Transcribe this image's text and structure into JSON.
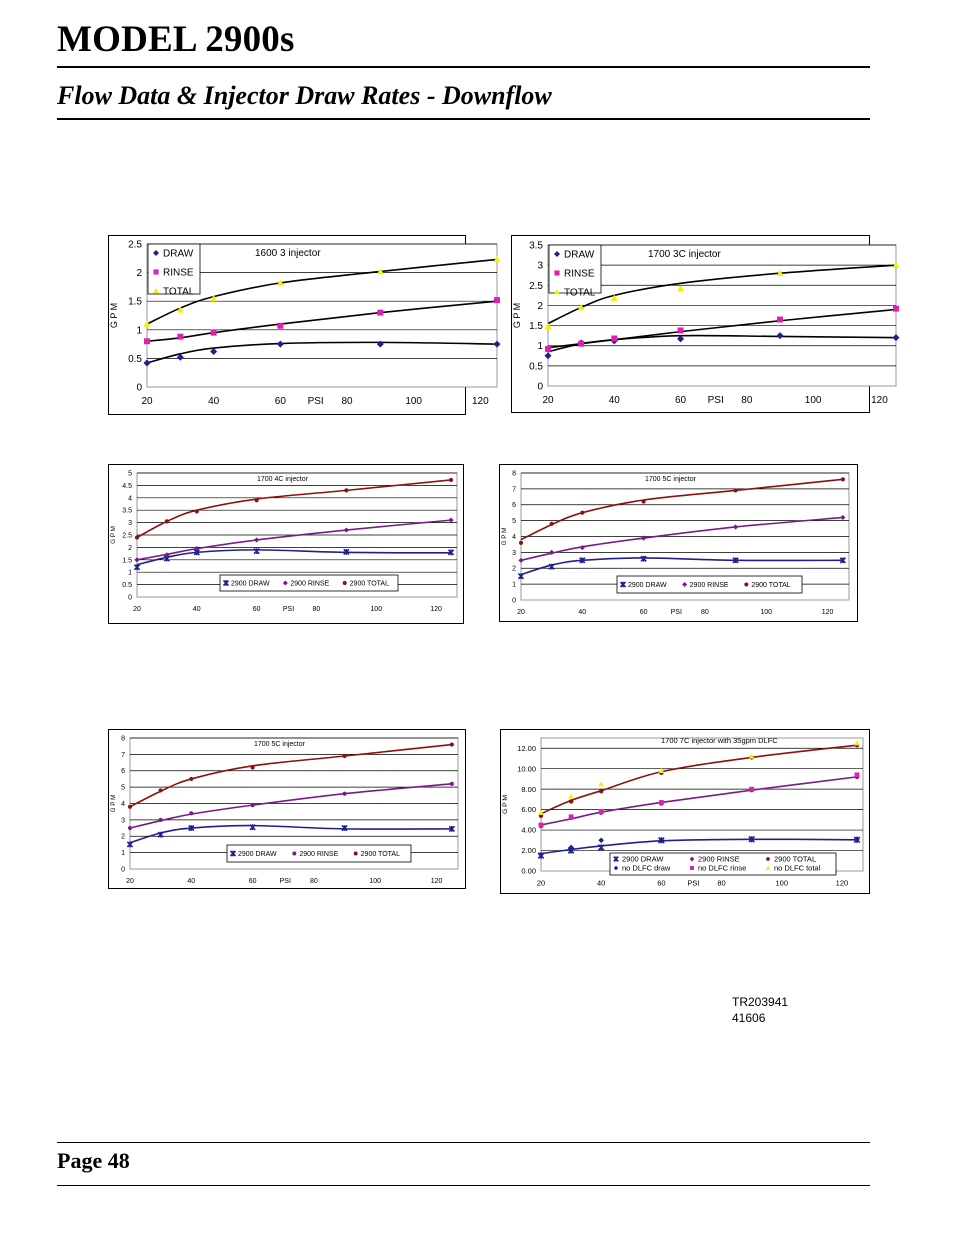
{
  "header": {
    "model_title": "MODEL 2900s",
    "subtitle": "Flow Data & Injector Draw Rates - Downflow"
  },
  "footer": {
    "page_number": "Page 48",
    "doc_ref_line1": "TR203941",
    "doc_ref_line2": "41606"
  },
  "colors": {
    "draw": "#1f1f8f",
    "rinse": "#7a1a8a",
    "total": "#8b1010",
    "rinse_magenta": "#e01eb0",
    "total_yellow": "#f2f200"
  },
  "chart_data": [
    {
      "type": "scatter",
      "title": "1600 3 injector",
      "xlabel": "PSI",
      "ylabel": "G P M",
      "xlim": [
        20,
        125
      ],
      "ylim": [
        0,
        2.5
      ],
      "yticks": [
        "0",
        "0.5",
        "1",
        "1.5",
        "2",
        "2.5"
      ],
      "xticks": [
        "20",
        "40",
        "60",
        "80",
        "100",
        "120"
      ],
      "legend": "top-left",
      "series": [
        {
          "name": "DRAW",
          "marker": "diamond",
          "color": "#1f1f8f",
          "x": [
            20,
            30,
            40,
            60,
            90,
            125
          ],
          "y": [
            0.42,
            0.52,
            0.62,
            0.75,
            0.75,
            0.75
          ],
          "trend": [
            0.42,
            0.58,
            0.68,
            0.76,
            0.78,
            0.75
          ]
        },
        {
          "name": "RINSE",
          "marker": "square",
          "color": "#e01eb0",
          "x": [
            20,
            30,
            40,
            60,
            90,
            125
          ],
          "y": [
            0.8,
            0.88,
            0.95,
            1.07,
            1.3,
            1.52
          ],
          "trend": [
            0.8,
            0.86,
            0.95,
            1.1,
            1.3,
            1.5
          ]
        },
        {
          "name": "TOTAL",
          "marker": "triangle",
          "color": "#f2f200",
          "x": [
            20,
            30,
            40,
            60,
            90,
            125
          ],
          "y": [
            1.1,
            1.35,
            1.55,
            1.82,
            2.02,
            2.23
          ],
          "trend": [
            1.1,
            1.38,
            1.58,
            1.82,
            2.02,
            2.23
          ]
        }
      ]
    },
    {
      "type": "scatter",
      "title": "1700 3C injector",
      "xlabel": "PSI",
      "ylabel": "G P M",
      "xlim": [
        20,
        125
      ],
      "ylim": [
        0,
        3.5
      ],
      "yticks": [
        "0",
        "0.5",
        "1",
        "1.5",
        "2",
        "2.5",
        "3",
        "3.5"
      ],
      "xticks": [
        "20",
        "40",
        "60",
        "80",
        "100",
        "120"
      ],
      "legend": "top-left",
      "series": [
        {
          "name": "DRAW",
          "marker": "diamond",
          "color": "#1f1f8f",
          "x": [
            20,
            30,
            40,
            60,
            90,
            125
          ],
          "y": [
            0.75,
            1.07,
            1.12,
            1.17,
            1.25,
            1.2
          ],
          "trend": [
            0.85,
            1.05,
            1.15,
            1.25,
            1.23,
            1.2
          ]
        },
        {
          "name": "RINSE",
          "marker": "square",
          "color": "#e01eb0",
          "x": [
            20,
            30,
            40,
            60,
            90,
            125
          ],
          "y": [
            0.92,
            1.05,
            1.18,
            1.38,
            1.65,
            1.92
          ],
          "trend": [
            0.95,
            1.05,
            1.15,
            1.35,
            1.62,
            1.9
          ]
        },
        {
          "name": "TOTAL",
          "marker": "triangle",
          "color": "#f2f200",
          "x": [
            20,
            30,
            40,
            60,
            90,
            125
          ],
          "y": [
            1.48,
            1.95,
            2.18,
            2.42,
            2.8,
            3.0
          ],
          "trend": [
            1.55,
            1.95,
            2.25,
            2.55,
            2.8,
            3.0
          ]
        }
      ]
    },
    {
      "type": "scatter",
      "title": "1700 4C injector",
      "xlabel": "PSI",
      "ylabel": "G P M",
      "xlim": [
        20,
        127
      ],
      "ylim": [
        0,
        5
      ],
      "yticks": [
        "0",
        "0.5",
        "1",
        "1.5",
        "2",
        "2.5",
        "3",
        "3.5",
        "4",
        "4.5",
        "5"
      ],
      "xticks": [
        "20",
        "40",
        "60",
        "80",
        "100",
        "120"
      ],
      "legend": "bottom-inline",
      "series": [
        {
          "name": "2900 DRAW",
          "marker": "asterisk",
          "color": "#1f1f8f",
          "x": [
            20,
            30,
            40,
            60,
            90,
            125
          ],
          "y": [
            1.2,
            1.55,
            1.8,
            1.85,
            1.82,
            1.8
          ],
          "trend": [
            1.3,
            1.6,
            1.8,
            1.9,
            1.8,
            1.78
          ]
        },
        {
          "name": "2900 RINSE",
          "marker": "diamond",
          "color": "#7a1a8a",
          "x": [
            20,
            30,
            40,
            60,
            90,
            125
          ],
          "y": [
            1.5,
            1.7,
            1.95,
            2.3,
            2.7,
            3.1
          ],
          "trend": [
            1.5,
            1.72,
            1.95,
            2.3,
            2.7,
            3.1
          ]
        },
        {
          "name": "2900 TOTAL",
          "marker": "dot",
          "color": "#8b1010",
          "x": [
            20,
            30,
            40,
            60,
            90,
            125
          ],
          "y": [
            2.4,
            3.05,
            3.45,
            3.9,
            4.3,
            4.72
          ],
          "trend": [
            2.4,
            3.05,
            3.5,
            3.95,
            4.3,
            4.72
          ]
        }
      ]
    },
    {
      "type": "scatter",
      "title": "1700 5C injector",
      "xlabel": "PSI",
      "ylabel": "G P M",
      "xlim": [
        20,
        127
      ],
      "ylim": [
        0,
        8
      ],
      "yticks": [
        "0",
        "1",
        "2",
        "3",
        "4",
        "5",
        "6",
        "7",
        "8"
      ],
      "xticks": [
        "20",
        "40",
        "60",
        "80",
        "100",
        "120"
      ],
      "legend": "bottom-inline",
      "series": [
        {
          "name": "2900 DRAW",
          "marker": "asterisk",
          "color": "#1f1f8f",
          "x": [
            20,
            30,
            40,
            60,
            90,
            125
          ],
          "y": [
            1.5,
            2.1,
            2.5,
            2.6,
            2.5,
            2.5
          ],
          "trend": [
            1.6,
            2.2,
            2.5,
            2.65,
            2.5,
            2.5
          ]
        },
        {
          "name": "2900 RINSE",
          "marker": "diamond",
          "color": "#7a1a8a",
          "x": [
            20,
            30,
            40,
            60,
            90,
            125
          ],
          "y": [
            2.5,
            3.0,
            3.3,
            3.9,
            4.6,
            5.2
          ],
          "trend": [
            2.5,
            2.95,
            3.35,
            3.9,
            4.6,
            5.2
          ]
        },
        {
          "name": "2900 TOTAL",
          "marker": "dot",
          "color": "#8b1010",
          "x": [
            20,
            30,
            40,
            60,
            90,
            125
          ],
          "y": [
            3.6,
            4.8,
            5.5,
            6.2,
            6.9,
            7.6
          ],
          "trend": [
            3.8,
            4.75,
            5.5,
            6.3,
            6.9,
            7.6
          ]
        }
      ]
    },
    {
      "type": "scatter",
      "title": "1700 5C injector",
      "xlabel": "PSI",
      "ylabel": "G P M",
      "xlim": [
        20,
        127
      ],
      "ylim": [
        0,
        8
      ],
      "yticks": [
        "0",
        "1",
        "2",
        "3",
        "4",
        "5",
        "6",
        "7",
        "8"
      ],
      "xticks": [
        "20",
        "40",
        "60",
        "80",
        "100",
        "120"
      ],
      "legend": "bottom-inline",
      "series": [
        {
          "name": "2900 DRAW",
          "marker": "asterisk",
          "color": "#1f1f8f",
          "x": [
            20,
            30,
            40,
            60,
            90,
            125
          ],
          "y": [
            1.5,
            2.1,
            2.5,
            2.55,
            2.5,
            2.45
          ],
          "trend": [
            1.6,
            2.2,
            2.5,
            2.65,
            2.45,
            2.45
          ]
        },
        {
          "name": "2900 RINSE",
          "marker": "dot",
          "color": "#7a1a8a",
          "x": [
            20,
            30,
            40,
            60,
            90,
            125
          ],
          "y": [
            2.5,
            3.0,
            3.4,
            3.9,
            4.6,
            5.2
          ],
          "trend": [
            2.5,
            2.95,
            3.35,
            3.9,
            4.6,
            5.2
          ]
        },
        {
          "name": "2900 TOTAL",
          "marker": "dot",
          "color": "#8b1010",
          "x": [
            20,
            30,
            40,
            60,
            90,
            125
          ],
          "y": [
            3.8,
            4.8,
            5.5,
            6.2,
            6.9,
            7.6
          ],
          "trend": [
            3.8,
            4.75,
            5.5,
            6.3,
            6.9,
            7.6
          ]
        }
      ]
    },
    {
      "type": "scatter",
      "title": "1700 7C injector with 35gpm DLFC",
      "xlabel": "PSI",
      "ylabel": "G P M",
      "xlim": [
        20,
        127
      ],
      "ylim": [
        0,
        13
      ],
      "yticks": [
        "0.00",
        "2.00",
        "4.00",
        "6.00",
        "8.00",
        "10.00",
        "12.00"
      ],
      "xticks": [
        "20",
        "40",
        "60",
        "80",
        "100",
        "120"
      ],
      "legend": "bottom-inline-2rows",
      "series": [
        {
          "name": "2900 DRAW",
          "marker": "asterisk",
          "color": "#1f1f8f",
          "x": [
            20,
            30,
            40,
            60,
            90,
            125
          ],
          "y": [
            1.5,
            2.0,
            2.3,
            3.0,
            3.1,
            3.05
          ],
          "trend": [
            1.7,
            2.1,
            2.45,
            2.95,
            3.1,
            3.05
          ]
        },
        {
          "name": "no DLFC draw",
          "marker": "diamond",
          "color": "#1f1f8f",
          "x": [
            20,
            30,
            40,
            60,
            90,
            125
          ],
          "y": [
            1.6,
            2.3,
            3.0,
            3.0,
            3.1,
            3.1
          ]
        },
        {
          "name": "2900 RINSE",
          "marker": "dot",
          "color": "#7a1a8a",
          "x": [
            20,
            30,
            40,
            60,
            90,
            125
          ],
          "y": [
            4.4,
            5.2,
            5.7,
            6.6,
            7.9,
            9.2
          ],
          "trend": [
            4.5,
            5.1,
            5.75,
            6.7,
            7.9,
            9.2
          ]
        },
        {
          "name": "no DLFC rinse",
          "marker": "square",
          "color": "#e01eb0",
          "x": [
            20,
            30,
            40,
            60,
            90,
            125
          ],
          "y": [
            4.5,
            5.3,
            5.8,
            6.7,
            8.0,
            9.4
          ]
        },
        {
          "name": "2900 TOTAL",
          "marker": "dot",
          "color": "#8b1010",
          "x": [
            20,
            30,
            40,
            60,
            90,
            125
          ],
          "y": [
            5.4,
            6.8,
            7.8,
            9.6,
            11.1,
            12.3
          ],
          "trend": [
            5.6,
            6.9,
            7.85,
            9.7,
            11.1,
            12.3
          ]
        },
        {
          "name": "no DLFC total",
          "marker": "triangle",
          "color": "#f2f200",
          "x": [
            20,
            30,
            40,
            60,
            90,
            125
          ],
          "y": [
            5.7,
            7.3,
            8.5,
            9.8,
            11.2,
            12.5
          ]
        }
      ]
    }
  ]
}
